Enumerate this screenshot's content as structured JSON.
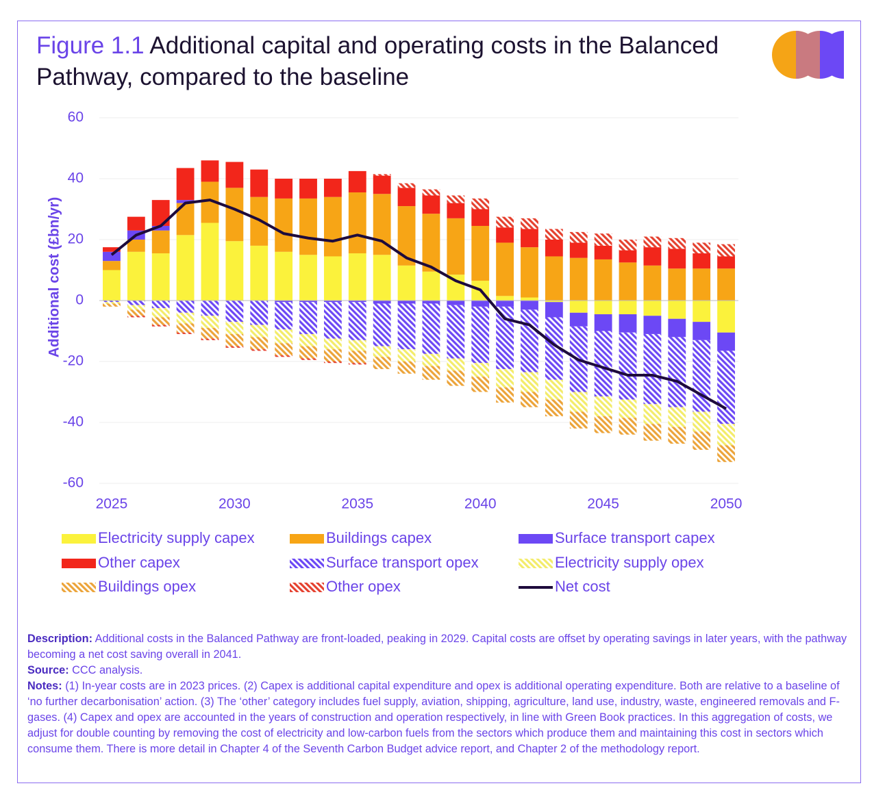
{
  "figure_label": "Figure 1.1",
  "title": "Additional capital and operating costs in the Balanced Pathway, compared to the baseline",
  "chart_data": {
    "type": "bar",
    "stacked": true,
    "y_label": "Additional cost (£bn/yr)",
    "x": [
      2025,
      2026,
      2027,
      2028,
      2029,
      2030,
      2031,
      2032,
      2033,
      2034,
      2035,
      2036,
      2037,
      2038,
      2039,
      2040,
      2041,
      2042,
      2043,
      2044,
      2045,
      2046,
      2047,
      2048,
      2049,
      2050
    ],
    "xlim": [
      2024.5,
      2050.5
    ],
    "xticks": [
      2025,
      2030,
      2035,
      2040,
      2045,
      2050
    ],
    "ylim": [
      -60,
      60
    ],
    "yticks": [
      -60,
      -40,
      -20,
      0,
      20,
      40,
      60
    ],
    "grid": true,
    "series": [
      {
        "name": "Electricity supply capex",
        "color": "#fbf23c",
        "hatch": false,
        "values": [
          10,
          16,
          15.5,
          21.5,
          25.5,
          19.5,
          18,
          16,
          15,
          14.5,
          15.5,
          15,
          11.5,
          9.5,
          8.5,
          6.5,
          1.5,
          1,
          -0.5,
          -4,
          -4.5,
          -4.5,
          -5,
          -6,
          -7,
          -10.5
        ]
      },
      {
        "name": "Buildings capex",
        "color": "#f7a516",
        "hatch": false,
        "values": [
          3,
          4,
          7.5,
          10.5,
          13.5,
          17.5,
          16,
          17.5,
          18.5,
          19.5,
          20,
          20,
          19.5,
          19,
          18.5,
          18,
          17.5,
          16.5,
          14.5,
          14,
          13.5,
          12.5,
          11.5,
          10.5,
          10.5,
          10.5
        ]
      },
      {
        "name": "Surface transport capex",
        "color": "#6c48f5",
        "hatch": false,
        "values": [
          3,
          3,
          1.5,
          1,
          0,
          0,
          0,
          -0.5,
          -0.5,
          -0.5,
          -0.5,
          -1,
          -1,
          -1,
          -1.5,
          -2,
          -2,
          -3,
          -5,
          -4.5,
          -5.5,
          -6,
          -6,
          -6,
          -6,
          -6
        ]
      },
      {
        "name": "Other capex",
        "color": "#f2261b",
        "hatch": false,
        "values": [
          1.5,
          4.5,
          8.5,
          10.5,
          7,
          8.5,
          9,
          6.5,
          6.5,
          6,
          7,
          6,
          6,
          6,
          5,
          5.5,
          5,
          6,
          5.5,
          5,
          4.5,
          4,
          6,
          6.5,
          5,
          4
        ]
      },
      {
        "name": "Surface transport opex",
        "color": "#6c48f5",
        "hatch": true,
        "values": [
          -0.5,
          -1.5,
          -2.5,
          -4,
          -5,
          -7,
          -8,
          -9,
          -10.5,
          -12,
          -12.5,
          -14,
          -15,
          -16.5,
          -17.5,
          -18.5,
          -20.5,
          -20.5,
          -20.5,
          -21.5,
          -21.5,
          -22,
          -23,
          -23,
          -23.5,
          -24
        ]
      },
      {
        "name": "Electricity supply opex",
        "color": "#f3ec6a",
        "hatch": true,
        "values": [
          -0.5,
          -1.5,
          -3,
          -3.5,
          -4,
          -4,
          -4,
          -4.5,
          -4,
          -3.5,
          -3.5,
          -3.5,
          -4,
          -4,
          -4,
          -4.5,
          -6,
          -6.5,
          -6.5,
          -6.5,
          -6.5,
          -6,
          -6.5,
          -6.5,
          -6.5,
          -7
        ]
      },
      {
        "name": "Buildings opex",
        "color": "#eca43a",
        "hatch": true,
        "values": [
          -1,
          -2,
          -2.5,
          -3,
          -3.5,
          -4,
          -4,
          -4,
          -4,
          -4,
          -4,
          -4,
          -4,
          -4.5,
          -5,
          -5,
          -5,
          -5,
          -5.5,
          -5.5,
          -5.5,
          -5.5,
          -5.5,
          -5.5,
          -6,
          -5.5
        ]
      },
      {
        "name": "Other opex",
        "color": "#e5412f",
        "hatch": true,
        "values": [
          0,
          -0.5,
          -0.5,
          -0.5,
          -0.5,
          -0.5,
          -0.5,
          -0.5,
          -0.5,
          -0.5,
          -0.5,
          0.5,
          1.5,
          2,
          2.5,
          3.5,
          3.5,
          3.5,
          3.5,
          3.5,
          4,
          3.5,
          3.5,
          3.5,
          3.5,
          4
        ]
      },
      {
        "name": "Net cost",
        "color": "#1e0b3c",
        "type": "line",
        "values": [
          15,
          21.5,
          24.5,
          32,
          33,
          30,
          26.5,
          22,
          20.5,
          19.5,
          21.5,
          19.5,
          14,
          11,
          6.5,
          3.5,
          -6,
          -8,
          -14.5,
          -19.5,
          -22,
          -24.5,
          -24.5,
          -26.5,
          -31,
          -35.5
        ]
      }
    ]
  },
  "description": {
    "label": "Description:",
    "text": "Additional costs in the Balanced Pathway are front-loaded, peaking in 2029. Capital costs are offset by operating savings in later years, with the pathway becoming a net cost saving overall in 2041."
  },
  "source": {
    "label": "Source:",
    "text": "CCC analysis."
  },
  "notes": {
    "label": "Notes:",
    "text": "(1) In-year costs are in 2023 prices. (2) Capex is additional capital expenditure and opex is additional operating expenditure. Both are relative to a baseline of ‘no further decarbonisation’ action. (3) The ‘other’ category includes fuel supply, aviation, shipping, agriculture, land use, industry, waste, engineered removals and F-gases. (4) Capex and opex are accounted in the years of construction and operation respectively, in line with Green Book practices. In this aggregation of costs, we adjust for double counting by removing the cost of electricity and low-carbon fuels from the sectors which produce them and maintaining this cost in sectors which consume them. There is more detail in Chapter 4 of the Seventh Carbon Budget advice report, and Chapter 2 of the methodology report."
  }
}
